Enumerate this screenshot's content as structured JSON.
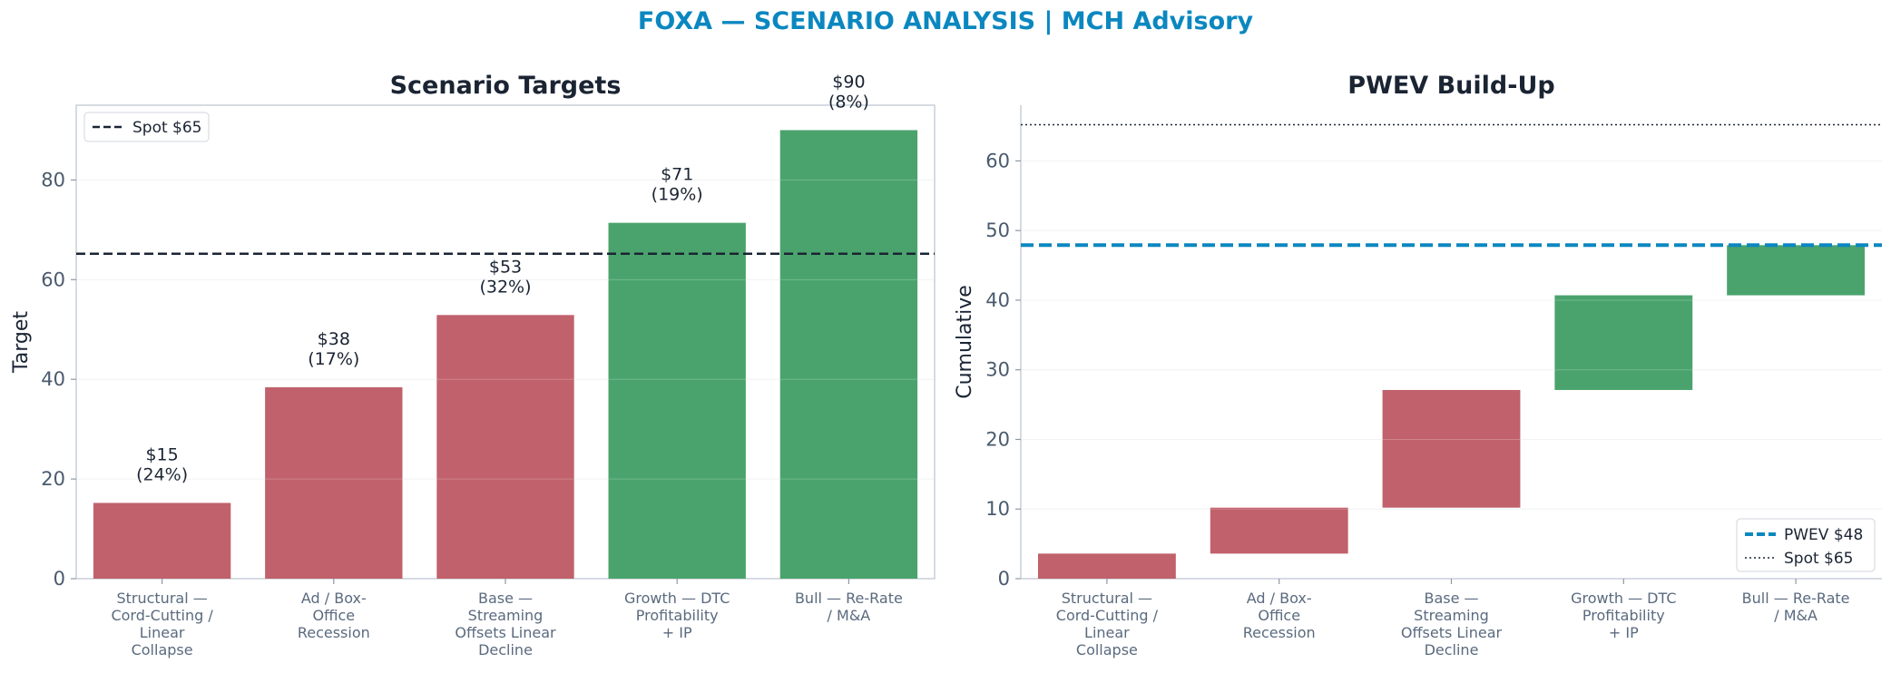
{
  "suptitle": "FOXA — SCENARIO ANALYSIS | MCH Advisory",
  "colors": {
    "bear": "#c0616b",
    "bull": "#4aa36c",
    "spot": "#1a2433",
    "pwev": "#0b87c0",
    "title": "#0b87c0"
  },
  "chart_data": [
    {
      "type": "bar",
      "title": "Scenario Targets",
      "xlabel": "",
      "ylabel": "Target",
      "ylim": [
        0,
        95
      ],
      "yticks": [
        0,
        20,
        40,
        60,
        80
      ],
      "grid": true,
      "categories": [
        [
          "Structural —",
          "Cord-Cutting /",
          "Linear",
          "Collapse"
        ],
        [
          "Ad / Box-",
          "Office",
          "Recession"
        ],
        [
          "Base —",
          "Streaming",
          "Offsets Linear",
          "Decline"
        ],
        [
          "Growth — DTC",
          "Profitability",
          "+ IP"
        ],
        [
          "Bull — Re-Rate",
          "/ M&A"
        ]
      ],
      "values": [
        15.2,
        38.4,
        52.9,
        71.4,
        90.0
      ],
      "value_labels": [
        "$15",
        "$38",
        "$53",
        "$71",
        "$90"
      ],
      "probability_labels": [
        "(24%)",
        "(17%)",
        "(32%)",
        "(19%)",
        "(8%)"
      ],
      "bar_colors": [
        "bear",
        "bear",
        "bear",
        "bull",
        "bull"
      ],
      "spot": 65.2,
      "legend": {
        "position": "top-left",
        "entries": [
          "Spot $65"
        ]
      }
    },
    {
      "type": "waterfall",
      "title": "PWEV Build-Up",
      "xlabel": "",
      "ylabel": "Cumulative",
      "ylim": [
        0,
        68
      ],
      "yticks": [
        0,
        10,
        20,
        30,
        40,
        50,
        60
      ],
      "grid": true,
      "categories": [
        [
          "Structural —",
          "Cord-Cutting /",
          "Linear",
          "Collapse"
        ],
        [
          "Ad / Box-",
          "Office",
          "Recession"
        ],
        [
          "Base —",
          "Streaming",
          "Offsets Linear",
          "Decline"
        ],
        [
          "Growth — DTC",
          "Profitability",
          "+ IP"
        ],
        [
          "Bull — Re-Rate",
          "/ M&A"
        ]
      ],
      "bars": [
        {
          "bottom": 0,
          "top": 3.6
        },
        {
          "bottom": 3.6,
          "top": 10.2
        },
        {
          "bottom": 10.2,
          "top": 27.1
        },
        {
          "bottom": 27.1,
          "top": 40.7
        },
        {
          "bottom": 40.7,
          "top": 47.9
        }
      ],
      "bar_colors": [
        "bear",
        "bear",
        "bear",
        "bull",
        "bull"
      ],
      "pwev": 47.9,
      "spot": 65.2,
      "legend": {
        "position": "bottom-right",
        "entries": [
          "PWEV $48",
          "Spot $65"
        ]
      }
    }
  ]
}
